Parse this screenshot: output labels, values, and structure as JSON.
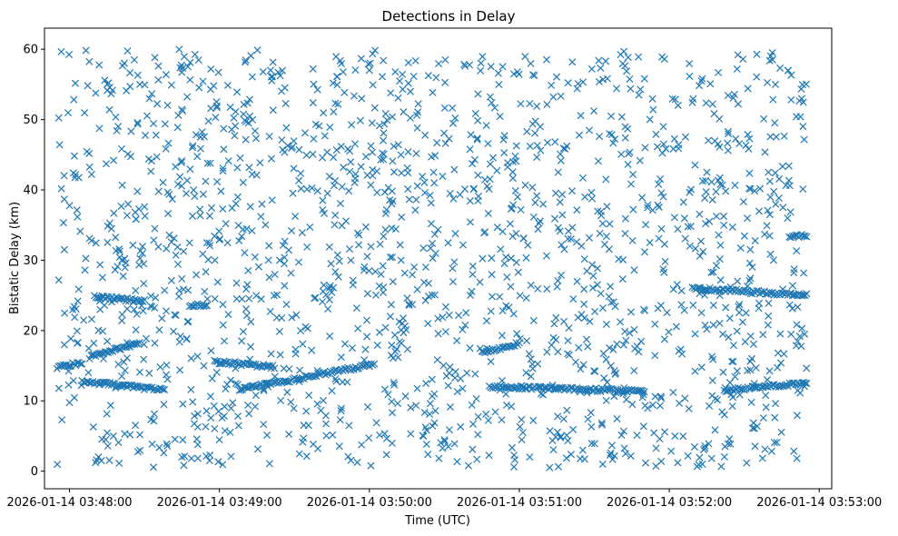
{
  "chart_data": {
    "type": "scatter",
    "title": "Detections in Delay",
    "xlabel": "Time (UTC)",
    "ylabel": "Bistatic Delay (km)",
    "marker": "x",
    "color": "#1f77b4",
    "xlim": [
      "2026-01-14 03:47:50",
      "2026-01-14 03:53:05"
    ],
    "ylim": [
      -2.5,
      63
    ],
    "x_ticks": [
      "2026-01-14 03:48:00",
      "2026-01-14 03:49:00",
      "2026-01-14 03:50:00",
      "2026-01-14 03:51:00",
      "2026-01-14 03:52:00",
      "2026-01-14 03:53:00"
    ],
    "y_ticks": [
      0,
      10,
      20,
      30,
      40,
      50,
      60
    ],
    "grid": false,
    "data_time_range": [
      "2026-01-14 03:47:55",
      "2026-01-14 03:52:55"
    ],
    "tracks": [
      {
        "x": [
          "2026-01-14 03:47:55",
          "2026-01-14 03:48:05"
        ],
        "y": [
          14.8,
          15.4
        ]
      },
      {
        "x": [
          "2026-01-14 03:48:08",
          "2026-01-14 03:48:28"
        ],
        "y": [
          16.2,
          18.2
        ]
      },
      {
        "x": [
          "2026-01-14 03:48:05",
          "2026-01-14 03:48:38"
        ],
        "y": [
          12.8,
          11.5
        ]
      },
      {
        "x": [
          "2026-01-14 03:48:10",
          "2026-01-14 03:48:30"
        ],
        "y": [
          24.8,
          24.2
        ]
      },
      {
        "x": [
          "2026-01-14 03:48:48",
          "2026-01-14 03:48:55"
        ],
        "y": [
          23.6,
          23.6
        ]
      },
      {
        "x": [
          "2026-01-14 03:48:58",
          "2026-01-14 03:49:22"
        ],
        "y": [
          15.6,
          14.8
        ]
      },
      {
        "x": [
          "2026-01-14 03:49:08",
          "2026-01-14 03:50:02"
        ],
        "y": [
          11.6,
          15.2
        ]
      },
      {
        "x": [
          "2026-01-14 03:50:45",
          "2026-01-14 03:51:00"
        ],
        "y": [
          16.8,
          18.2
        ]
      },
      {
        "x": [
          "2026-01-14 03:50:48",
          "2026-01-14 03:51:50"
        ],
        "y": [
          12.0,
          11.4
        ]
      },
      {
        "x": [
          "2026-01-14 03:52:10",
          "2026-01-14 03:52:55"
        ],
        "y": [
          26.0,
          25.0
        ]
      },
      {
        "x": [
          "2026-01-14 03:52:22",
          "2026-01-14 03:52:55"
        ],
        "y": [
          11.5,
          12.5
        ]
      },
      {
        "x": [
          "2026-01-14 03:52:48",
          "2026-01-14 03:52:55"
        ],
        "y": [
          33.4,
          33.4
        ]
      }
    ]
  }
}
